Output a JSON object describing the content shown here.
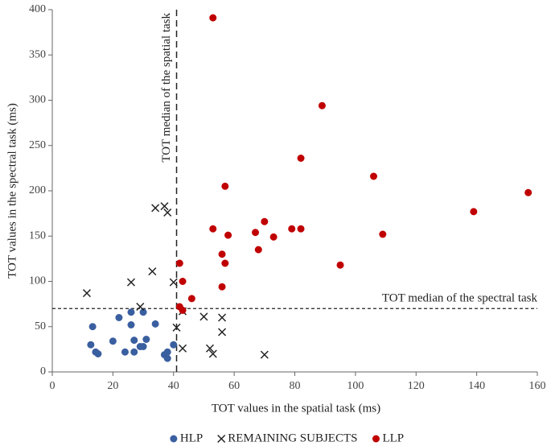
{
  "chart_data": {
    "type": "scatter",
    "x_label": "TOT values in the spatial task (ms)",
    "y_label": "TOT values in the spectral task (ms)",
    "xlim": [
      0,
      160
    ],
    "xticks": [
      0,
      20,
      40,
      60,
      80,
      100,
      120,
      140,
      160
    ],
    "ylim": [
      0,
      400
    ],
    "yticks": [
      0,
      50,
      100,
      150,
      200,
      250,
      300,
      350,
      400
    ],
    "reference_lines": [
      {
        "axis": "x",
        "value": 41,
        "label": "TOT median of the spatial task"
      },
      {
        "axis": "y",
        "value": 70,
        "label": "TOT median of the spectral task"
      }
    ],
    "series": [
      {
        "name": "HLP",
        "color": "#3a5fa0",
        "marker": "circle",
        "x": [
          12.7,
          13.3,
          14.3,
          15.1,
          20,
          22,
          24,
          26,
          26,
          27,
          27,
          29,
          30,
          30,
          31,
          34,
          37,
          38,
          38,
          40
        ],
        "values": [
          30,
          50,
          22,
          20,
          34,
          60,
          22,
          66,
          52,
          22,
          35,
          28,
          66,
          28,
          36,
          53,
          19,
          22,
          15,
          30
        ]
      },
      {
        "name": "REMAINING SUBJECTS",
        "color": "#222222",
        "marker": "x",
        "x": [
          11.4,
          26,
          29,
          33,
          34,
          37,
          38,
          40,
          41,
          43,
          43,
          50,
          52,
          53,
          56,
          56,
          70
        ],
        "values": [
          87,
          99,
          72,
          111,
          181,
          183,
          176,
          99,
          49,
          26,
          67,
          61,
          26,
          20,
          60,
          44,
          19
        ]
      },
      {
        "name": "LLP",
        "color": "#c00000",
        "marker": "circle",
        "x": [
          53,
          53,
          57,
          58,
          56,
          57,
          56,
          42,
          43,
          42,
          43,
          46,
          67,
          68,
          70,
          73,
          79,
          82,
          82,
          89,
          95,
          106,
          109,
          139,
          157
        ],
        "values": [
          391,
          158,
          205,
          151,
          130,
          120,
          94,
          120,
          100,
          72,
          68,
          81,
          154,
          135,
          166,
          149,
          158,
          158,
          236,
          294,
          118,
          216,
          152,
          177,
          198
        ]
      }
    ]
  }
}
